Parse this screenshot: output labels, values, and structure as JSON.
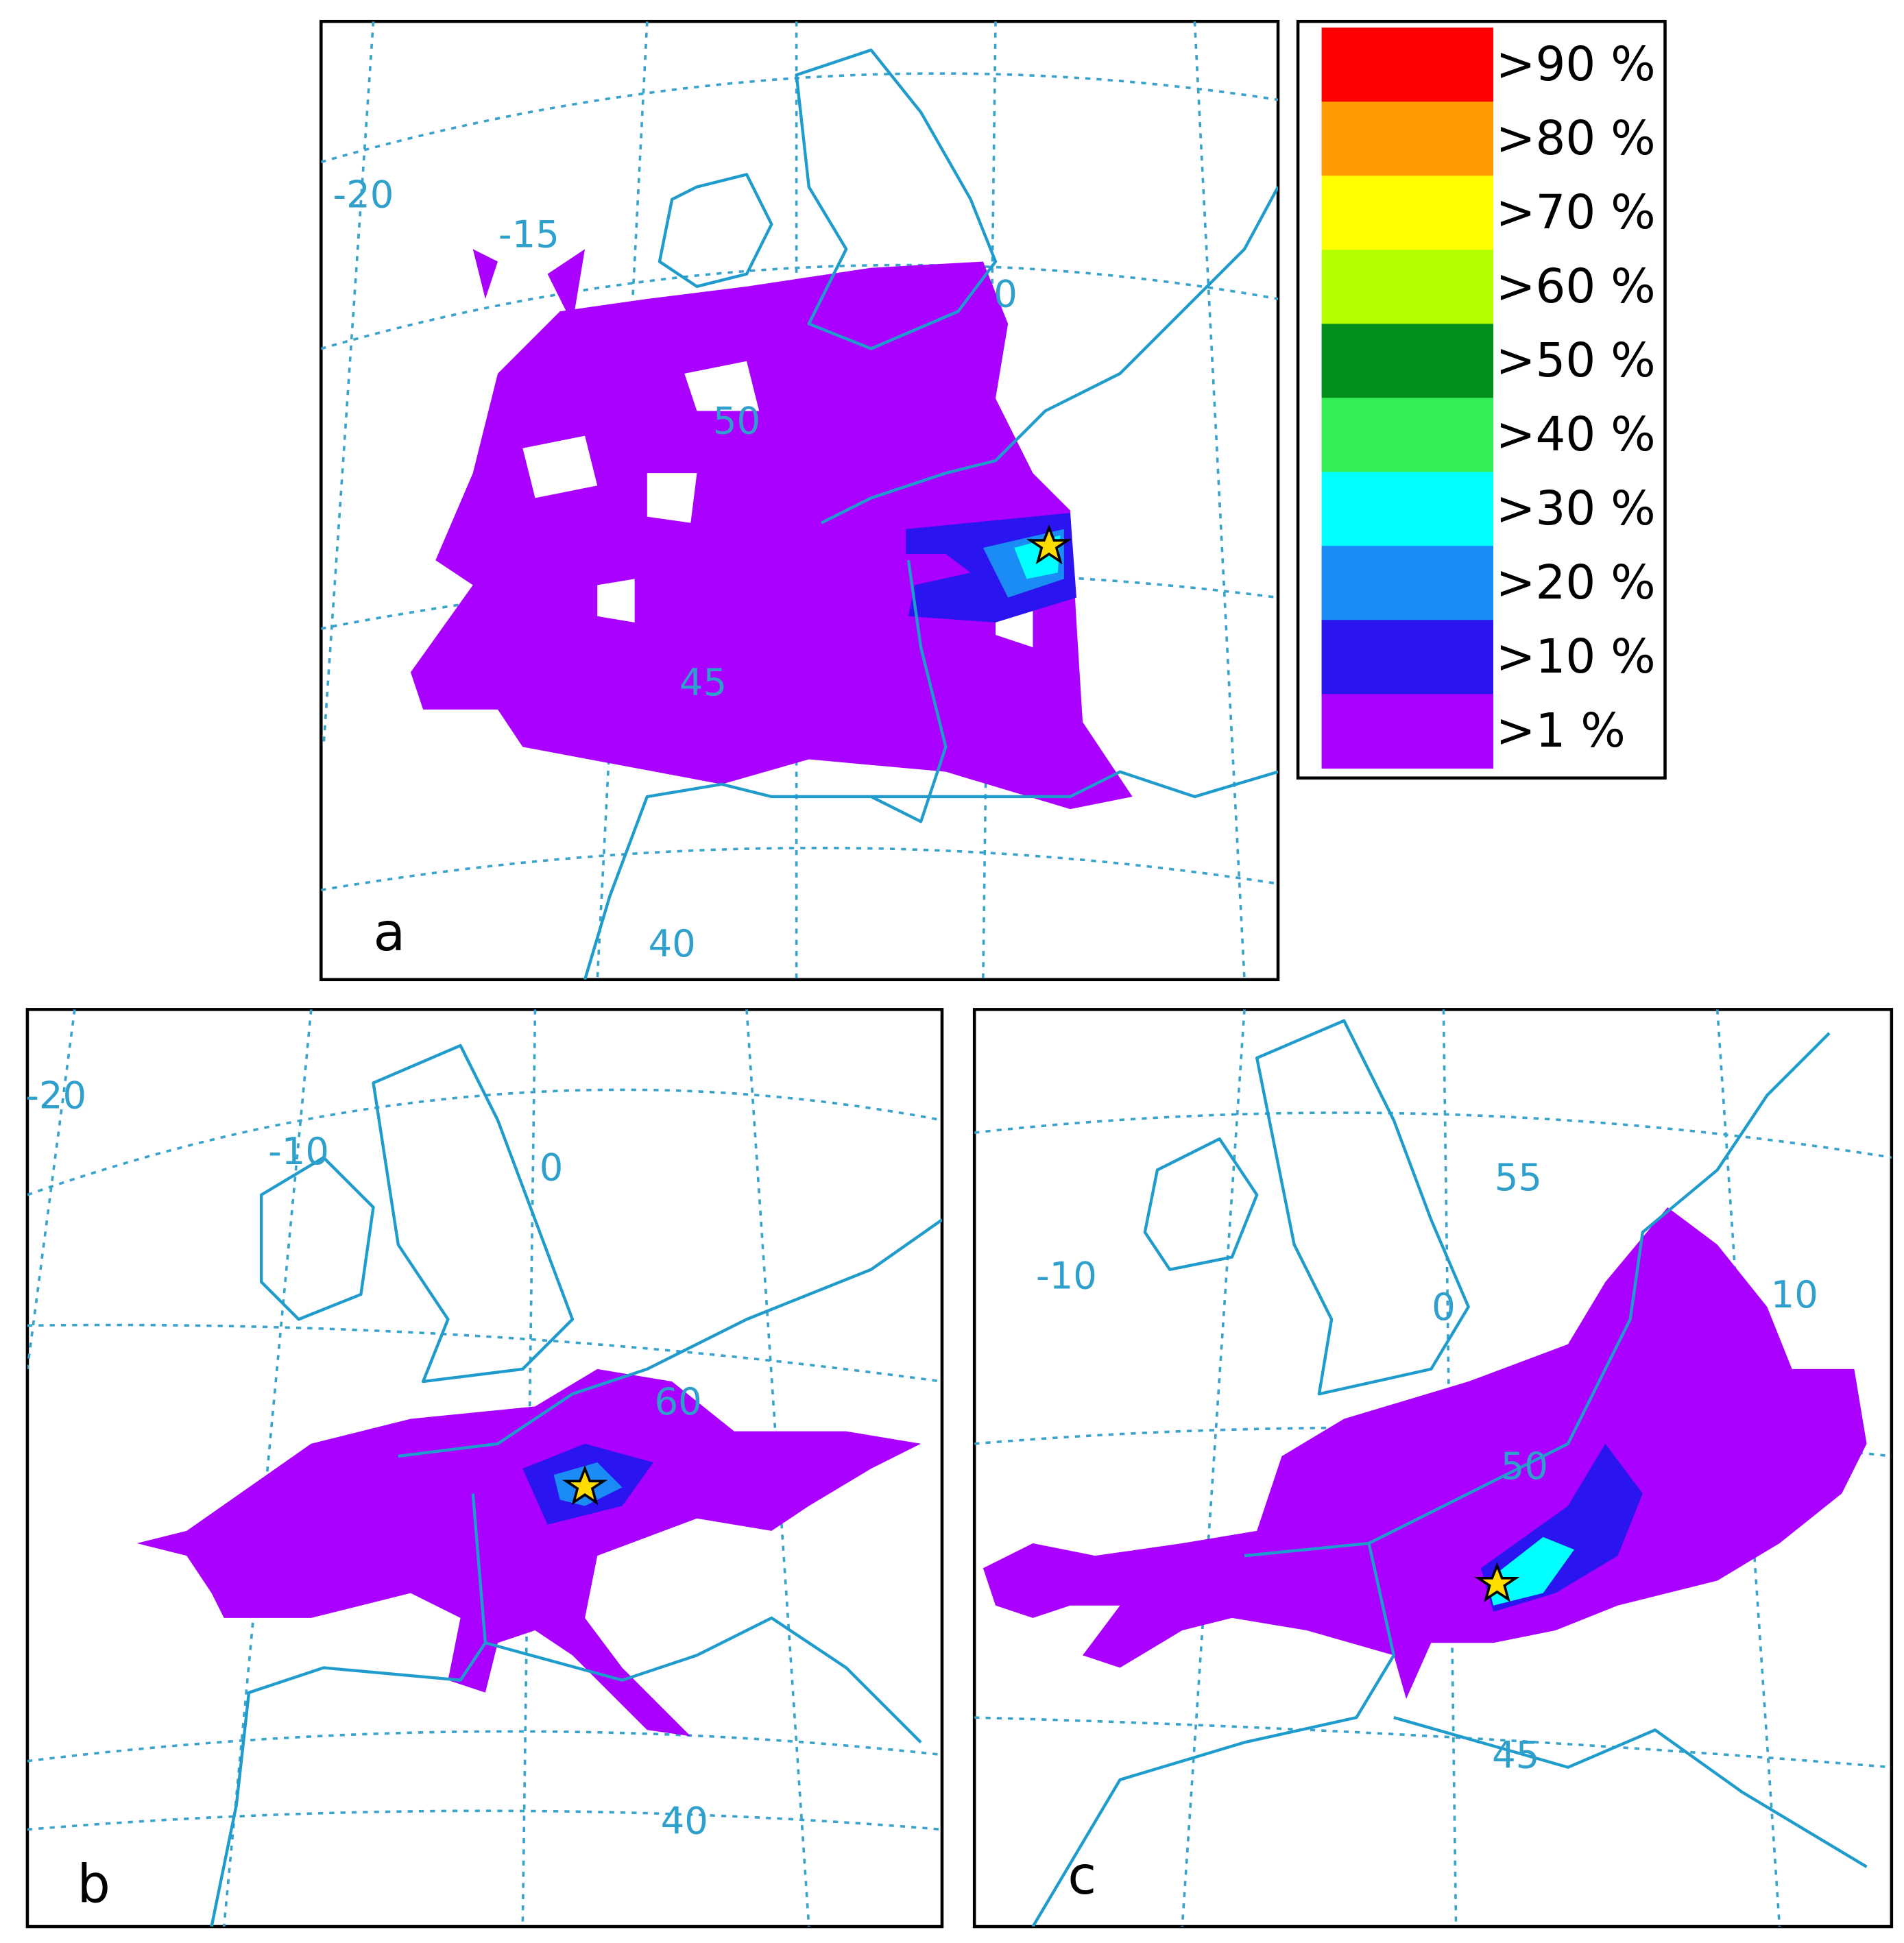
{
  "panels": [
    {
      "label": "a",
      "grid_labels": [
        "-20",
        "-15",
        "0",
        "50",
        "45",
        "40"
      ]
    },
    {
      "label": "b",
      "grid_labels": [
        "-20",
        "-10",
        "0",
        "60",
        "40"
      ]
    },
    {
      "label": "c",
      "grid_labels": [
        "55",
        "10",
        "0",
        "-10",
        "50",
        "45"
      ]
    }
  ],
  "legend": [
    {
      "label": ">90 %",
      "color": "#ff0000"
    },
    {
      "label": ">80 %",
      "color": "#ff9a00"
    },
    {
      "label": ">70 %",
      "color": "#ffff00"
    },
    {
      "label": ">60 %",
      "color": "#b4ff00"
    },
    {
      "label": ">50 %",
      "color": "#038f1e"
    },
    {
      "label": ">40 %",
      "color": "#33ee55"
    },
    {
      "label": ">30 %",
      "color": "#00ffff"
    },
    {
      "label": ">20 %",
      "color": "#1b8cf5"
    },
    {
      "label": ">10 %",
      "color": "#2a14f0"
    },
    {
      "label": ">1 %",
      "color": "#aa00ff"
    }
  ]
}
